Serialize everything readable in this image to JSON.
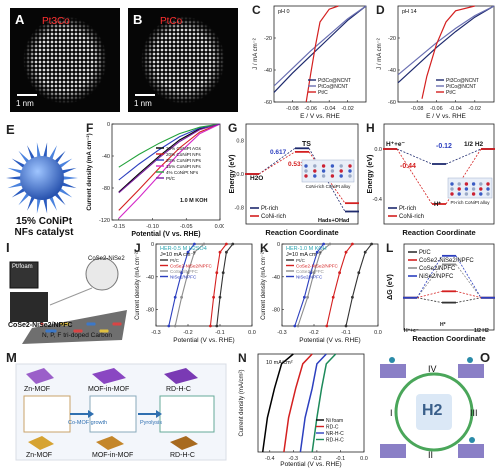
{
  "panels": {
    "A": {
      "label": "A",
      "material": "Pt3Co",
      "scale": "1 nm"
    },
    "B": {
      "label": "B",
      "material": "PtCo",
      "scale": "1 nm"
    },
    "E": {
      "label": "E",
      "caption_line1": "15% CoNiPt",
      "caption_line2": "NFs catalyst"
    },
    "I": {
      "label": "I",
      "tag1": "Pt/foam",
      "tag2": "CoSe2-NiSe2",
      "formula": "CoSe2-NiSe2/NPFC",
      "support": "N, P, F tri-doped Carbon"
    },
    "M": {
      "label": "M",
      "tiles": [
        "Zn-MOF",
        "MOF-in-MOF",
        "RD-H-C"
      ],
      "bottom_tiles": [
        "Zn-MOF",
        "MOF-in-MOF",
        "RD-H-C"
      ],
      "arrows": [
        "Co-MOF growth",
        "Pyrolysis"
      ]
    },
    "O": {
      "label": "O",
      "center": "H2",
      "steps": [
        "I",
        "II",
        "III",
        "IV"
      ]
    }
  },
  "chart_data": [
    {
      "id": "C",
      "type": "line",
      "label": "C",
      "annotation": "pH 0",
      "xlabel": "E / V vs. RHE",
      "ylabel": "J / mA cm⁻²",
      "xlim": [
        -0.1,
        0.0
      ],
      "ylim": [
        -60,
        0
      ],
      "xticks": [
        "-0.08",
        "-0.06",
        "-0.04",
        "-0.02"
      ],
      "yticks": [
        "-60",
        "-40",
        "-20"
      ],
      "series": [
        {
          "name": "Pt3Co@NCNT",
          "color": "#1e2a6e",
          "x": [
            0.0,
            -0.02,
            -0.04,
            -0.06,
            -0.08,
            -0.1
          ],
          "y": [
            0,
            -9,
            -20,
            -31,
            -42,
            -54
          ]
        },
        {
          "name": "PtCo@NCNT",
          "color": "#6a6fb2",
          "x": [
            0.0,
            -0.02,
            -0.04,
            -0.06,
            -0.08,
            -0.1
          ],
          "y": [
            0,
            -8,
            -18,
            -28,
            -39,
            -50
          ]
        },
        {
          "name": "Pt/C",
          "color": "#d42020",
          "x": [
            -0.03,
            -0.04,
            -0.05,
            -0.055,
            -0.06,
            -0.065
          ],
          "y": [
            0,
            -2,
            -10,
            -25,
            -42,
            -60
          ]
        }
      ]
    },
    {
      "id": "D",
      "type": "line",
      "label": "D",
      "annotation": "pH 14",
      "xlabel": "E / V vs. RHE",
      "ylabel": "J / mA cm⁻²",
      "xlim": [
        -0.1,
        0.0
      ],
      "ylim": [
        -60,
        0
      ],
      "xticks": [
        "-0.08",
        "-0.06",
        "-0.04",
        "-0.02"
      ],
      "yticks": [
        "-60",
        "-40",
        "-20"
      ],
      "series": [
        {
          "name": "Pt3Co@NCNT",
          "color": "#1e2a6e",
          "x": [
            0.0,
            -0.02,
            -0.04,
            -0.06,
            -0.08,
            -0.1
          ],
          "y": [
            0,
            -7,
            -16,
            -26,
            -37,
            -48
          ]
        },
        {
          "name": "PtCo@NCNT",
          "color": "#6a6fb2",
          "x": [
            0.0,
            -0.02,
            -0.04,
            -0.06,
            -0.08,
            -0.1
          ],
          "y": [
            0,
            -6,
            -14,
            -23,
            -33,
            -43
          ]
        },
        {
          "name": "Pt/C",
          "color": "#d42020",
          "x": [
            -0.02,
            -0.04,
            -0.05,
            -0.06,
            -0.07,
            -0.075
          ],
          "y": [
            0,
            -3,
            -10,
            -24,
            -44,
            -58
          ]
        }
      ]
    },
    {
      "id": "F",
      "type": "line",
      "label": "F",
      "annotation": "1.0 M KOH",
      "xlabel": "Potential (V vs. RHE)",
      "ylabel": "Current density (mA cm⁻²)",
      "xlim": [
        -0.16,
        0.0
      ],
      "ylim": [
        -120,
        0
      ],
      "xticks": [
        "-0.15",
        "-0.10",
        "-0.05",
        "0.00"
      ],
      "yticks": [
        "0",
        "-40",
        "-80",
        "-120"
      ],
      "series": [
        {
          "name": "20% CoNiPt AGs",
          "color": "#000000",
          "x": [
            0.0,
            -0.03,
            -0.06,
            -0.09,
            -0.12,
            -0.15
          ],
          "y": [
            0,
            -6,
            -20,
            -40,
            -62,
            -85
          ]
        },
        {
          "name": "20% CoNiPt NFs",
          "color": "#d42020",
          "x": [
            0.0,
            -0.03,
            -0.06,
            -0.09,
            -0.12,
            -0.15
          ],
          "y": [
            0,
            -10,
            -30,
            -55,
            -82,
            -108
          ]
        },
        {
          "name": "20% CoNiPt NPs",
          "color": "#2c3fbf",
          "x": [
            0.0,
            -0.03,
            -0.06,
            -0.09,
            -0.12,
            -0.15
          ],
          "y": [
            0,
            -5,
            -16,
            -32,
            -50,
            -70
          ]
        },
        {
          "name": "15% CoNiPt NFs",
          "color": "#d428c8",
          "x": [
            0.0,
            -0.03,
            -0.06,
            -0.09,
            -0.12,
            -0.15
          ],
          "y": [
            0,
            -12,
            -36,
            -64,
            -92,
            -118
          ]
        },
        {
          "name": "4% CoNiPt NFs",
          "color": "#23a23b",
          "x": [
            0.0,
            -0.03,
            -0.06,
            -0.09,
            -0.12,
            -0.15
          ],
          "y": [
            0,
            -4,
            -12,
            -24,
            -38,
            -54
          ]
        },
        {
          "name": "Pt/C",
          "color": "#7a1fa0",
          "x": [
            0.0,
            -0.03,
            -0.06,
            -0.09,
            -0.12,
            -0.15
          ],
          "y": [
            0,
            -7,
            -22,
            -42,
            -64,
            -86
          ]
        }
      ]
    },
    {
      "id": "G",
      "type": "line",
      "label": "G",
      "xlabel": "Reaction Coordinate",
      "ylabel": "Energy (eV)",
      "ylim": [
        -1.2,
        1.2
      ],
      "yticks": [
        "-0.8",
        "0.0",
        "0.8"
      ],
      "annotations": [
        "0.617",
        "0.531",
        "TS",
        "H2O",
        "Hads+OHad"
      ],
      "inset_label": "CoNi-rich CoNiPt alloy",
      "series": [
        {
          "name": "Pt-rich",
          "color": "#1e2a6e",
          "x": [
            0,
            1,
            2
          ],
          "y": [
            0.0,
            0.617,
            -0.9
          ]
        },
        {
          "name": "CoNi-rich",
          "color": "#d42020",
          "x": [
            0,
            1,
            2
          ],
          "y": [
            0.0,
            0.531,
            -0.7
          ]
        }
      ]
    },
    {
      "id": "H",
      "type": "line",
      "label": "H",
      "xlabel": "Reaction Coordinate",
      "ylabel": "Energy (eV)",
      "ylim": [
        -0.6,
        0.2
      ],
      "yticks": [
        "0.0",
        "-0.4"
      ],
      "annotations": [
        "H⁺+e⁻",
        "-0.12",
        "-0.44",
        "H*",
        "1/2 H2"
      ],
      "inset_label": "Pt-rich CoNiPt alloy",
      "series": [
        {
          "name": "Pt-rich",
          "color": "#1e2a6e",
          "x": [
            0,
            1,
            2
          ],
          "y": [
            0.0,
            -0.12,
            0.0
          ]
        },
        {
          "name": "CoNi-rich",
          "color": "#d42020",
          "x": [
            0,
            1,
            2
          ],
          "y": [
            0.0,
            -0.44,
            0.0
          ]
        }
      ]
    },
    {
      "id": "J",
      "type": "line",
      "label": "J",
      "annotation": "HER-0.5 M H2SO4",
      "annotation2": "J=10 mA cm⁻²",
      "xlabel": "Potential (V vs. RHE)",
      "ylabel": "Current density (mA cm⁻²)",
      "xlim": [
        -0.3,
        0.0
      ],
      "ylim": [
        -100,
        0
      ],
      "xticks": [
        "-0.3",
        "-0.2",
        "-0.1",
        "0.0"
      ],
      "yticks": [
        "0",
        "-40",
        "-80"
      ],
      "series": [
        {
          "name": "Pt/C",
          "color": "#333333",
          "x": [
            -0.06,
            -0.08,
            -0.09,
            -0.1,
            -0.11
          ],
          "y": [
            0,
            -10,
            -35,
            -65,
            -100
          ]
        },
        {
          "name": "CoSe2-NiSe2/NPFC",
          "color": "#d42020",
          "x": [
            -0.08,
            -0.1,
            -0.11,
            -0.12,
            -0.13
          ],
          "y": [
            0,
            -10,
            -35,
            -65,
            -100
          ]
        },
        {
          "name": "CoSe2/NPFC",
          "color": "#8d8d8d",
          "x": [
            -0.15,
            -0.18,
            -0.2,
            -0.22,
            -0.24
          ],
          "y": [
            0,
            -10,
            -35,
            -65,
            -100
          ]
        },
        {
          "name": "NiSe2/NPFC",
          "color": "#2c3fbf",
          "x": [
            -0.18,
            -0.2,
            -0.22,
            -0.24,
            -0.26
          ],
          "y": [
            0,
            -10,
            -35,
            -65,
            -100
          ]
        }
      ]
    },
    {
      "id": "K",
      "type": "line",
      "label": "K",
      "annotation": "HER-1.0 M KOH",
      "annotation2": "J=10 mA cm⁻²",
      "xlabel": "Potential (V vs. RHE)",
      "ylabel": "Current density (mA cm⁻²)",
      "xlim": [
        -0.3,
        0.0
      ],
      "ylim": [
        -100,
        0
      ],
      "xticks": [
        "-0.3",
        "-0.2",
        "-0.1",
        "0.0"
      ],
      "yticks": [
        "0",
        "-40",
        "-80"
      ],
      "series": [
        {
          "name": "Pt/C",
          "color": "#333333",
          "x": [
            -0.02,
            -0.04,
            -0.06,
            -0.08,
            -0.1
          ],
          "y": [
            0,
            -10,
            -35,
            -65,
            -100
          ]
        },
        {
          "name": "CoSe2-NiSe2/NPFC",
          "color": "#d42020",
          "x": [
            -0.08,
            -0.1,
            -0.12,
            -0.14,
            -0.16
          ],
          "y": [
            0,
            -10,
            -35,
            -65,
            -100
          ]
        },
        {
          "name": "CoSe2/NPFC",
          "color": "#8d8d8d",
          "x": [
            -0.15,
            -0.18,
            -0.2,
            -0.22,
            -0.25
          ],
          "y": [
            0,
            -10,
            -35,
            -65,
            -100
          ]
        },
        {
          "name": "NiSe2/NPFC",
          "color": "#2c3fbf",
          "x": [
            -0.17,
            -0.19,
            -0.21,
            -0.23,
            -0.26
          ],
          "y": [
            0,
            -10,
            -35,
            -65,
            -100
          ]
        }
      ]
    },
    {
      "id": "L",
      "type": "line",
      "label": "L",
      "xlabel": "Reaction Coordinate",
      "ylabel": "ΔG (eV)",
      "ylim": [
        -0.6,
        1.0
      ],
      "annotations": [
        "H⁺+e⁻",
        "H*",
        "1/2 H2"
      ],
      "series": [
        {
          "name": "Pt/C",
          "color": "#333333",
          "x": [
            0,
            1,
            2
          ],
          "y": [
            0,
            -0.09,
            0
          ]
        },
        {
          "name": "CoSe2-NiSe2/NPFC",
          "color": "#d42020",
          "x": [
            0,
            1,
            2
          ],
          "y": [
            0,
            0.12,
            0
          ]
        },
        {
          "name": "CoSe2/NPFC",
          "color": "#8d8d8d",
          "x": [
            0,
            1,
            2
          ],
          "y": [
            0,
            0.62,
            0
          ]
        },
        {
          "name": "NiSe2/NPFC",
          "color": "#2c3fbf",
          "x": [
            0,
            1,
            2
          ],
          "y": [
            0,
            0.78,
            0
          ]
        }
      ]
    },
    {
      "id": "N",
      "type": "line",
      "label": "N",
      "annotation": "10 mA/cm²",
      "xlabel": "Potential (V vs. RHE)",
      "ylabel": "Current density (mA/cm²)",
      "xlim": [
        -0.45,
        0.0
      ],
      "ylim": [
        -100,
        0
      ],
      "xticks": [
        "-0.4",
        "-0.3",
        "-0.2",
        "-0.1",
        "0.0"
      ],
      "yticks": [],
      "series": [
        {
          "name": "Ni foam",
          "color": "#000000",
          "x": [
            -0.3,
            -0.35,
            -0.38,
            -0.41,
            -0.43
          ],
          "y": [
            0,
            -10,
            -35,
            -65,
            -100
          ]
        },
        {
          "name": "RD-C",
          "color": "#d42020",
          "x": [
            -0.22,
            -0.26,
            -0.29,
            -0.32,
            -0.34
          ],
          "y": [
            0,
            -10,
            -35,
            -65,
            -100
          ]
        },
        {
          "name": "NR-H-C",
          "color": "#2c3fbf",
          "x": [
            -0.16,
            -0.2,
            -0.22,
            -0.25,
            -0.27
          ],
          "y": [
            0,
            -10,
            -35,
            -65,
            -100
          ]
        },
        {
          "name": "RD-H-C",
          "color": "#1d8a5a",
          "x": [
            -0.12,
            -0.16,
            -0.18,
            -0.2,
            -0.22
          ],
          "y": [
            0,
            -10,
            -35,
            -65,
            -100
          ]
        }
      ]
    }
  ]
}
